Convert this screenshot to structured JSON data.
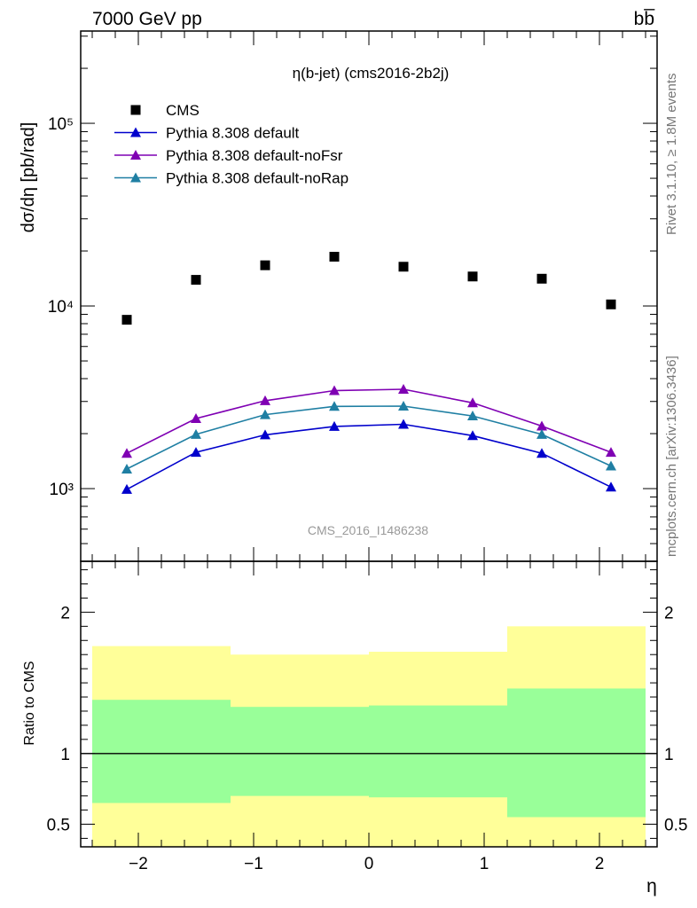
{
  "header": {
    "energy_label": "7000 GeV pp",
    "process_label": "bb̅",
    "side_label_top": "Rivet 3.1.10, ≥ 1.8M events",
    "side_label_bottom": "mcplots.cern.ch [arXiv:1306.3436]"
  },
  "chart_data": [
    {
      "type": "scatter",
      "title": "η(b-jet) (cms2016-2b2j)",
      "watermark": "CMS_2016_I1486238",
      "ylabel": "dσ/dη [pb/rad]",
      "yscale": "log",
      "ylim": [
        400,
        320000
      ],
      "xlim": [
        -2.5,
        2.5
      ],
      "ytick_labels": [
        "10³",
        "10⁴",
        "10⁵"
      ],
      "ytick_values": [
        1000,
        10000,
        100000
      ],
      "legend_position": "top-left",
      "series": [
        {
          "name": "CMS",
          "style": "marker-square",
          "color": "#000000",
          "x": [
            -2.1,
            -1.5,
            -0.9,
            -0.3,
            0.3,
            0.9,
            1.5,
            2.1
          ],
          "y": [
            8400,
            13900,
            16700,
            18600,
            16400,
            14500,
            14100,
            10200
          ]
        },
        {
          "name": "Pythia 8.308 default",
          "style": "line-triangle",
          "color": "#0000cc",
          "x": [
            -2.1,
            -1.5,
            -0.9,
            -0.3,
            0.3,
            0.9,
            1.5,
            2.1
          ],
          "y": [
            990,
            1580,
            1970,
            2190,
            2250,
            1950,
            1560,
            1020
          ]
        },
        {
          "name": "Pythia 8.308 default-noFsr",
          "style": "line-triangle",
          "color": "#7f00b3",
          "x": [
            -2.1,
            -1.5,
            -0.9,
            -0.3,
            0.3,
            0.9,
            1.5,
            2.1
          ],
          "y": [
            1560,
            2420,
            3030,
            3440,
            3500,
            2950,
            2200,
            1580
          ]
        },
        {
          "name": "Pythia 8.308 default-noRap",
          "style": "line-triangle",
          "color": "#1f7fa3",
          "x": [
            -2.1,
            -1.5,
            -0.9,
            -0.3,
            0.3,
            0.9,
            1.5,
            2.1
          ],
          "y": [
            1280,
            1980,
            2540,
            2820,
            2830,
            2500,
            1980,
            1330
          ]
        }
      ]
    },
    {
      "type": "area",
      "ylabel": "Ratio to CMS",
      "xlabel": "η",
      "ylim": [
        0.34,
        2.36
      ],
      "xlim": [
        -2.5,
        2.5
      ],
      "ytick_labels": [
        "0.5",
        "1",
        "2"
      ],
      "ytick_values": [
        0.5,
        1,
        2
      ],
      "xtick_labels": [
        "−2",
        "−1",
        "0",
        "1",
        "2"
      ],
      "xtick_values": [
        -2,
        -1,
        0,
        1,
        2
      ],
      "reference_line": 1,
      "bands": {
        "bin_edges": [
          -2.4,
          -1.2,
          0,
          1.2,
          2.4
        ],
        "outer_color": "#ffff99",
        "inner_color": "#99ff99",
        "outer_low": [
          0.34,
          0.34,
          0.34,
          0.34
        ],
        "outer_high": [
          1.76,
          1.7,
          1.72,
          1.9
        ],
        "inner_low": [
          0.65,
          0.7,
          0.69,
          0.55
        ],
        "inner_high": [
          1.38,
          1.33,
          1.34,
          1.46
        ]
      }
    }
  ]
}
